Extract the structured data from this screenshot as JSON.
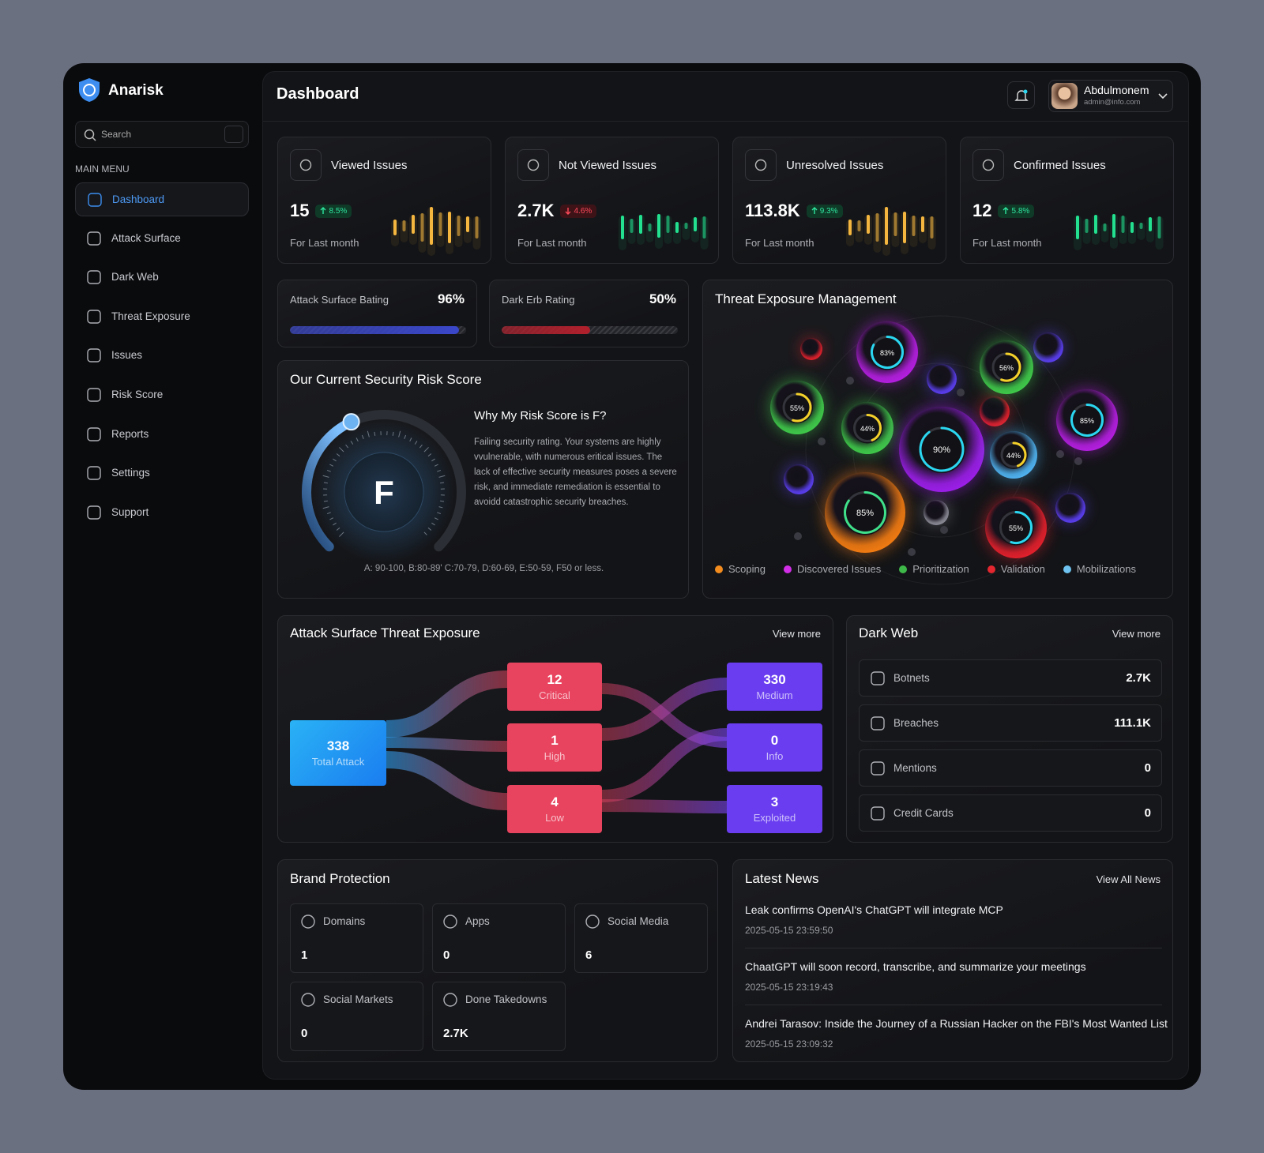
{
  "sidebar": {
    "brand": "Anarisk",
    "search": "Search",
    "menu_title": "MAIN MENU",
    "menu": [
      "Dashboard",
      "Attack Surface",
      "Dark Web",
      "Threat Exposure",
      "Issues",
      "Risk Score",
      "Reports",
      "Settings",
      "Support"
    ]
  },
  "header": {
    "title": "Dashboard",
    "user_name": "Abdulmonem",
    "user_email": "admin@info.com"
  },
  "stats": [
    {
      "title": "Viewed Issues",
      "value": "15",
      "change": "8.5%",
      "trend": "up",
      "period": "For Last month",
      "color": "#f4b63f"
    },
    {
      "title": "Not Viewed Issues",
      "value": "2.7K",
      "change": "4.6%",
      "trend": "down",
      "period": "For Last month",
      "color": "#22e08f"
    },
    {
      "title": "Unresolved Issues",
      "value": "113.8K",
      "change": "9.3%",
      "trend": "up",
      "period": "For Last month",
      "color": "#f4b63f"
    },
    {
      "title": "Confirmed Issues",
      "value": "12",
      "change": "5.8%",
      "trend": "up",
      "period": "For Last month",
      "color": "#22e08f"
    }
  ],
  "ratings": [
    {
      "title": "Attack Surface Bating",
      "value": 96,
      "label": "96%",
      "color": "#3a47c9"
    },
    {
      "title": "Dark Erb Rating",
      "value": 50,
      "label": "50%",
      "color": "#b1202c"
    }
  ],
  "risk": {
    "title": "Our Current Security Risk Score",
    "grade": "F",
    "heading": "Why My Risk Score is F?",
    "text": "Failing security rating. Your systems are highly vvulnerable, with numerous eritical issues. The lack of effective security measures poses a severe risk, and immediate remediation is essential to avoidd catastrophic security breaches.",
    "scale": "A: 90-100, B:80-89' C:70-79, D:60-69, E:50-59, F50 or less."
  },
  "threat": {
    "title": "Threat Exposure Management",
    "bubbles": {
      "values": [
        83,
        56,
        55,
        44,
        90,
        44,
        85,
        85,
        55
      ],
      "value_labels": [
        "83%",
        "56%",
        "55%",
        "44%",
        "90%",
        "44%",
        "85%",
        "85%",
        "55%"
      ],
      "colors": [
        "#b41ee0",
        "#3fc94a",
        "#3fc94a",
        "#3fc94a",
        "#9b1ee8",
        "#4fb2f0",
        "#b41ee0",
        "#f07a12",
        "#e0202c"
      ],
      "ring_colors": [
        "#2ad6f0",
        "#f4d02a",
        "#f4d02a",
        "#f4d02a",
        "#2ad6f0",
        "#f4d02a",
        "#2ad6f0",
        "#3fe08a",
        "#2ad6f0"
      ]
    },
    "legend": [
      {
        "name": "Scoping",
        "color": "#f28c1e"
      },
      {
        "name": "Discovered Issues",
        "color": "#d22ee8"
      },
      {
        "name": "Prioritization",
        "color": "#3fb84a"
      },
      {
        "name": "Validation",
        "color": "#e3262f"
      },
      {
        "name": "Mobilizations",
        "color": "#6ec3f0"
      }
    ]
  },
  "attack": {
    "title": "Attack Surface Threat Exposure",
    "link": "View more",
    "nodes": [
      {
        "value": "338",
        "label": "Total Attack"
      },
      {
        "value": "12",
        "label": "Critical"
      },
      {
        "value": "1",
        "label": "High"
      },
      {
        "value": "4",
        "label": "Low"
      },
      {
        "value": "330",
        "label": "Medium"
      },
      {
        "value": "0",
        "label": "Info"
      },
      {
        "value": "3",
        "label": "Exploited"
      }
    ]
  },
  "dark_web": {
    "title": "Dark Web",
    "link": "View more",
    "rows": [
      {
        "label": "Botnets",
        "value": "2.7K"
      },
      {
        "label": "Breaches",
        "value": "111.1K"
      },
      {
        "label": "Mentions",
        "value": "0"
      },
      {
        "label": "Credit Cards",
        "value": "0"
      }
    ]
  },
  "brand": {
    "title": "Brand Protection",
    "items": [
      {
        "label": "Domains",
        "value": "1"
      },
      {
        "label": "Apps",
        "value": "0"
      },
      {
        "label": "Social Media",
        "value": "6"
      },
      {
        "label": "Social Markets",
        "value": "0"
      },
      {
        "label": "Done Takedowns",
        "value": "2.7K"
      }
    ]
  },
  "news": {
    "title": "Latest News",
    "link": "View All News",
    "items": [
      {
        "title": "Leak confirms OpenAI's ChatGPT will integrate MCP",
        "date": "2025-05-15 23:59:50"
      },
      {
        "title": "ChaatGPT will soon record, transcribe, and summarize your meetings",
        "date": "2025-05-15 23:19:43"
      },
      {
        "title": "Andrei Tarasov: Inside the Journey of a Russian Hacker on the FBI's Most Wanted List",
        "date": "2025-05-15 23:09:32"
      }
    ]
  }
}
